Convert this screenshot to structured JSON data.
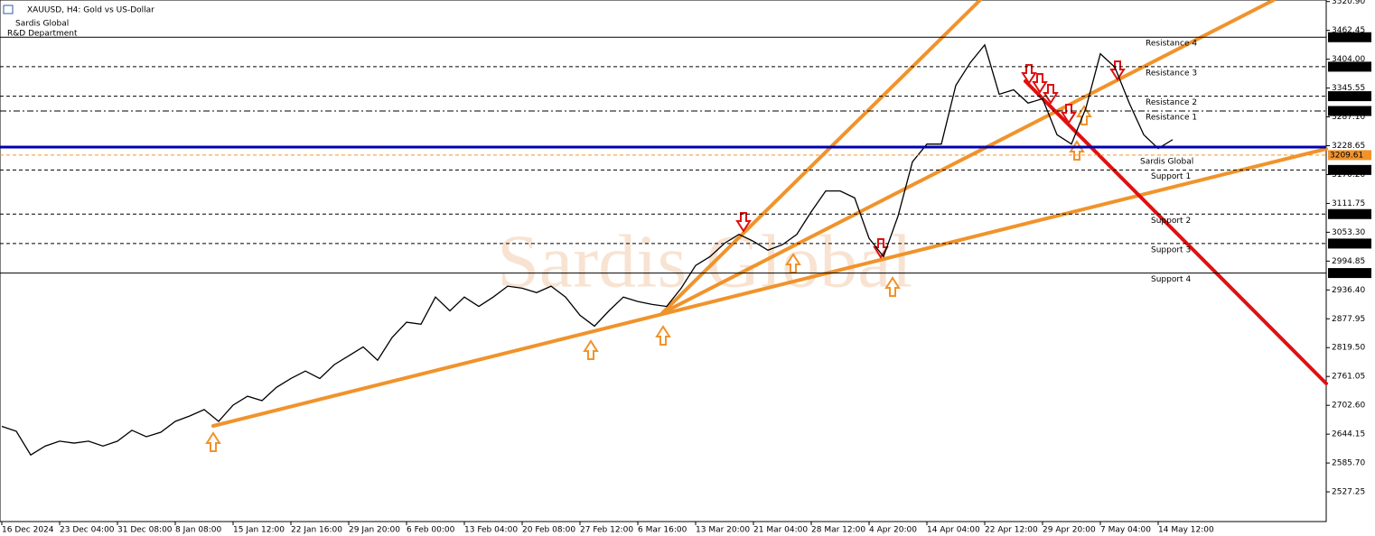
{
  "header": {
    "symbol": "XAUUSD, H4:  Gold vs US-Dollar",
    "company": "Sardis Global",
    "department": "R&D Department",
    "watermark": "Sardis Global"
  },
  "chart_data": {
    "type": "line",
    "categories": [
      "16 Dec 2024",
      null,
      null,
      null,
      "23 Dec 04:00",
      null,
      null,
      null,
      "31 Dec 08:00",
      null,
      null,
      null,
      "8 Jan 08:00",
      null,
      null,
      null,
      "15 Jan 12:00",
      null,
      null,
      null,
      "22 Jan 16:00",
      null,
      null,
      null,
      "29 Jan 20:00",
      null,
      null,
      null,
      "6 Feb 00:00",
      null,
      null,
      null,
      "13 Feb 04:00",
      null,
      null,
      null,
      "20 Feb 08:00",
      null,
      null,
      null,
      "27 Feb 12:00",
      null,
      null,
      null,
      "6 Mar 16:00",
      null,
      null,
      null,
      "13 Mar 20:00",
      null,
      null,
      null,
      "21 Mar 04:00",
      null,
      null,
      null,
      "28 Mar 12:00",
      null,
      null,
      null,
      "4 Apr 20:00",
      null,
      null,
      null,
      "14 Apr 04:00",
      null,
      null,
      null,
      "22 Apr 12:00",
      null,
      null,
      null,
      "29 Apr 20:00",
      null,
      null,
      null,
      "7 May 04:00",
      null,
      null,
      null,
      "14 May 12:00",
      null
    ],
    "series": [
      {
        "name": "XAUUSD",
        "color": "#000000",
        "values": [
          2660,
          2650,
          2602,
          2620,
          2630,
          2626,
          2630,
          2620,
          2630,
          2652,
          2639,
          2648,
          2670,
          2681,
          2694,
          2670,
          2703,
          2721,
          2712,
          2739,
          2757,
          2772,
          2757,
          2785,
          2803,
          2821,
          2794,
          2840,
          2871,
          2867,
          2922,
          2894,
          2922,
          2903,
          2922,
          2944,
          2940,
          2931,
          2944,
          2922,
          2885,
          2863,
          2894,
          2922,
          2913,
          2907,
          2903,
          2940,
          2986,
          3004,
          3031,
          3049,
          3035,
          3017,
          3028,
          3049,
          3095,
          3137,
          3137,
          3123,
          3041,
          3004,
          3086,
          3196,
          3232,
          3232,
          3351,
          3397,
          3433,
          3333,
          3342,
          3315,
          3324,
          3251,
          3232,
          3305,
          3415,
          3388,
          3315,
          3251,
          3223,
          3241
        ]
      }
    ],
    "ylim": [
      2467,
      3524
    ],
    "yticks": [
      {
        "value": 3520.9,
        "label": "3520.90"
      },
      {
        "value": 3462.45,
        "label": "3462.45"
      },
      {
        "value": 3404,
        "label": "3404.00"
      },
      {
        "value": 3345.55,
        "label": "3345.55"
      },
      {
        "value": 3287.1,
        "label": "3287.10"
      },
      {
        "value": 3228.65,
        "label": "3228.65"
      },
      {
        "value": 3170.2,
        "label": "3170.20"
      },
      {
        "value": 3111.75,
        "label": "3111.75"
      },
      {
        "value": 3053.3,
        "label": "3053.30"
      },
      {
        "value": 2994.85,
        "label": "2994.85"
      },
      {
        "value": 2936.4,
        "label": "2936.40"
      },
      {
        "value": 2877.95,
        "label": "2877.95"
      },
      {
        "value": 2819.5,
        "label": "2819.50"
      },
      {
        "value": 2761.05,
        "label": "2761.05"
      },
      {
        "value": 2702.6,
        "label": "2702.60"
      },
      {
        "value": 2644.15,
        "label": "2644.15"
      },
      {
        "value": 2585.7,
        "label": "2585.70"
      },
      {
        "value": 2527.25,
        "label": "2527.25"
      }
    ],
    "levels": [
      {
        "value": 3448.57,
        "label": "3448.57",
        "name": "Resistance 4",
        "color": "#000000",
        "dash": "solid"
      },
      {
        "value": 3388.83,
        "label": "3388.83",
        "name": "Resistance 3",
        "color": "#000000",
        "dash": "dashed"
      },
      {
        "value": 3329.09,
        "label": "3329.09",
        "name": "Resistance 2",
        "color": "#000000",
        "dash": "dashed"
      },
      {
        "value": 3299.05,
        "label": "3299.05",
        "name": "Resistance 1",
        "color": "#000000",
        "dash": "dashdot"
      },
      {
        "value": 3226,
        "color": "#0000b0",
        "dash": "thick"
      },
      {
        "value": 3209.61,
        "label": "3209.61",
        "name": "Sardis Global",
        "color": "#f0932b",
        "dash": "dashed"
      },
      {
        "value": 3179.57,
        "label": "3179.57",
        "name": "Support 1",
        "color": "#000000",
        "dash": "dashed"
      },
      {
        "value": 3090.13,
        "label": "3090.13",
        "name": "Support 2",
        "color": "#000000",
        "dash": "dashed"
      },
      {
        "value": 3030.39,
        "label": "3030.39",
        "name": "Support 3",
        "color": "#000000",
        "dash": "dashed"
      },
      {
        "value": 2970.65,
        "label": "2970.65",
        "name": "Support 4",
        "color": "#000000",
        "dash": "solid"
      }
    ]
  }
}
